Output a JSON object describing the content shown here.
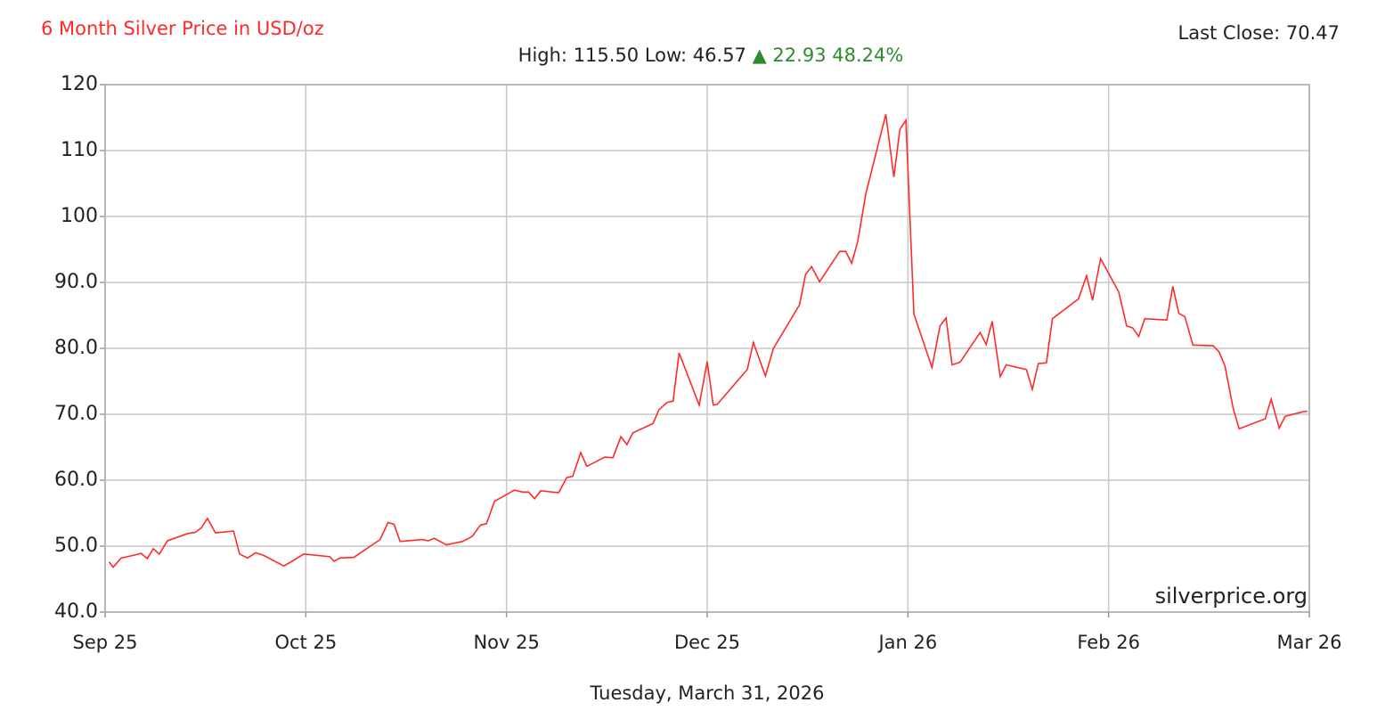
{
  "chart_data": {
    "type": "line",
    "title": "6 Month Silver Price in USD/oz",
    "last_close": "Last Close: 70.47",
    "stats": "High: 115.50 Low: 46.57",
    "change": "▲ 22.93 48.24%",
    "watermark": "silverprice.org",
    "x_label": "Tuesday, March 31, 2026",
    "grid": true,
    "xlim": [
      0,
      6
    ],
    "xticks": [
      {
        "value": 0,
        "label": "Sep 25"
      },
      {
        "value": 1,
        "label": "Oct 25"
      },
      {
        "value": 2,
        "label": "Nov 25"
      },
      {
        "value": 3,
        "label": "Dec 25"
      },
      {
        "value": 4,
        "label": "Jan 26"
      },
      {
        "value": 5,
        "label": "Feb 26"
      },
      {
        "value": 6,
        "label": "Mar 26"
      }
    ],
    "ylim": [
      40,
      120
    ],
    "yticks": [
      {
        "value": 40,
        "label": "40.0"
      },
      {
        "value": 50,
        "label": "50.0"
      },
      {
        "value": 60,
        "label": "60.0"
      },
      {
        "value": 70,
        "label": "70.0"
      },
      {
        "value": 80,
        "label": "80.0"
      },
      {
        "value": 90,
        "label": "90.0"
      },
      100,
      110,
      120
    ],
    "series": [
      {
        "color": "#ff2a2a",
        "x": [
          0.02,
          0.04,
          0.08,
          0.14,
          0.18,
          0.21,
          0.24,
          0.27,
          0.31,
          0.41,
          0.45,
          0.48,
          0.51,
          0.55,
          0.64,
          0.67,
          0.71,
          0.75,
          0.79,
          0.89,
          0.92,
          0.99,
          1.12,
          1.14,
          1.17,
          1.24,
          1.37,
          1.41,
          1.44,
          1.47,
          1.58,
          1.61,
          1.64,
          1.7,
          1.78,
          1.83,
          1.87,
          1.9,
          1.94,
          2.04,
          2.08,
          2.11,
          2.14,
          2.17,
          2.26,
          2.3,
          2.33,
          2.37,
          2.4,
          2.49,
          2.53,
          2.57,
          2.6,
          2.63,
          2.73,
          2.76,
          2.8,
          2.83,
          2.86,
          2.96,
          3.0,
          3.03,
          3.05,
          3.2,
          3.23,
          3.29,
          3.33,
          3.46,
          3.49,
          3.52,
          3.56,
          3.66,
          3.69,
          3.72,
          3.75,
          3.79,
          3.89,
          3.93,
          3.96,
          3.99,
          4.03,
          4.12,
          4.16,
          4.19,
          4.22,
          4.26,
          4.36,
          4.39,
          4.42,
          4.46,
          4.49,
          4.59,
          4.62,
          4.65,
          4.69,
          4.72,
          4.85,
          4.89,
          4.92,
          4.96,
          5.05,
          5.09,
          5.12,
          5.15,
          5.18,
          5.29,
          5.32,
          5.35,
          5.38,
          5.42,
          5.52,
          5.55,
          5.58,
          5.62,
          5.65,
          5.78,
          5.81,
          5.85,
          5.88,
          5.97,
          5.99
        ],
        "values": [
          47.6,
          46.8,
          48.2,
          48.6,
          48.9,
          48.1,
          49.6,
          48.8,
          50.8,
          51.9,
          52.1,
          52.8,
          54.2,
          52.0,
          52.3,
          48.8,
          48.2,
          49.0,
          48.6,
          47.0,
          47.5,
          48.8,
          48.4,
          47.7,
          48.2,
          48.3,
          51.0,
          53.6,
          53.3,
          50.7,
          51.0,
          50.8,
          51.2,
          50.2,
          50.7,
          51.5,
          53.2,
          53.4,
          56.8,
          58.5,
          58.2,
          58.2,
          57.2,
          58.4,
          58.1,
          60.4,
          60.6,
          64.2,
          62.1,
          63.5,
          63.4,
          66.6,
          65.4,
          67.2,
          68.6,
          70.7,
          71.8,
          72.0,
          79.3,
          71.4,
          78.0,
          71.4,
          71.5,
          76.8,
          80.9,
          75.8,
          80.0,
          86.6,
          91.2,
          92.4,
          90.1,
          94.7,
          94.7,
          92.9,
          96.2,
          103.4,
          115.5,
          106.0,
          113.2,
          114.6,
          85.2,
          77.1,
          83.4,
          84.6,
          77.5,
          77.9,
          82.4,
          80.6,
          84.1,
          75.7,
          77.5,
          76.8,
          73.8,
          77.7,
          77.8,
          84.5,
          87.5,
          91.0,
          87.3,
          93.6,
          88.6,
          83.4,
          83.1,
          81.8,
          84.5,
          84.3,
          89.4,
          85.3,
          84.8,
          80.5,
          80.4,
          79.5,
          77.3,
          71.0,
          67.8,
          69.3,
          72.3,
          67.9,
          69.7,
          70.4,
          70.47
        ]
      }
    ]
  }
}
